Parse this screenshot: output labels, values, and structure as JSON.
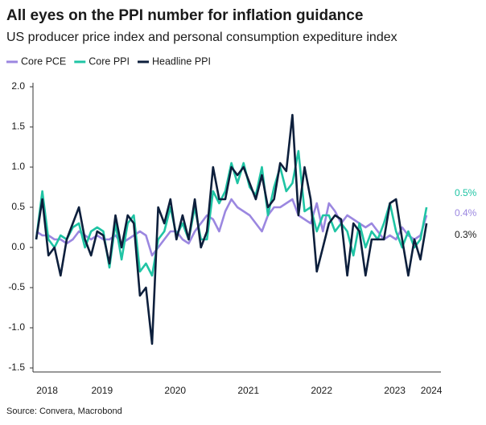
{
  "chart_data": {
    "type": "line",
    "title": "All eyes on the PPI number for inflation guidance",
    "subtitle": "US producer price index and personal consumption expediture index",
    "source": "Source: Convera, Macrobond",
    "categories": [
      null,
      "2018",
      null,
      null,
      null,
      null,
      null,
      null,
      null,
      null,
      "2019",
      null,
      null,
      null,
      null,
      null,
      null,
      null,
      null,
      null,
      null,
      null,
      "2020",
      null,
      null,
      null,
      null,
      null,
      null,
      null,
      null,
      null,
      null,
      null,
      "2021",
      null,
      null,
      null,
      null,
      null,
      null,
      null,
      null,
      null,
      null,
      null,
      "2022",
      null,
      null,
      null,
      null,
      null,
      null,
      null,
      null,
      null,
      null,
      null,
      "2023",
      null,
      null,
      null,
      null,
      null,
      "2024"
    ],
    "ylim": [
      -1.55,
      2.05
    ],
    "yticks": [
      {
        "value": -1.5,
        "label": "-1.5"
      },
      {
        "value": -1.0,
        "label": "-1.0"
      },
      -0.5,
      {
        "value": 0,
        "label": "0.0"
      },
      0.5,
      {
        "value": 1.0,
        "label": "1.0"
      },
      1.5,
      {
        "value": 2.0,
        "label": "2.0"
      }
    ],
    "series": [
      {
        "name": "Core PCE",
        "color": "#9b87e0",
        "values": [
          0.2,
          0.15,
          0.15,
          0.1,
          0.1,
          0.05,
          0.1,
          0.2,
          0.15,
          0.1,
          0.15,
          0.1,
          0.1,
          0.15,
          0.05,
          0.1,
          0.15,
          0.2,
          0.15,
          -0.1,
          0.0,
          0.1,
          0.2,
          0.2,
          0.1,
          0.05,
          0.2,
          0.3,
          0.4,
          0.35,
          0.2,
          0.45,
          0.6,
          0.5,
          0.45,
          0.4,
          0.3,
          0.2,
          0.4,
          0.5,
          0.5,
          0.55,
          0.6,
          0.4,
          0.35,
          0.3,
          0.55,
          0.2,
          0.55,
          0.45,
          0.3,
          0.4,
          0.35,
          0.3,
          0.25,
          0.3,
          0.2,
          0.1,
          0.15,
          0.1,
          0.25,
          0.15,
          0.1,
          0.15,
          0.4
        ],
        "value_labels": [
          null,
          null,
          null,
          null,
          null,
          null,
          null,
          null,
          null,
          null,
          null,
          null,
          null,
          null,
          null,
          null,
          null,
          null,
          null,
          null,
          null,
          null,
          null,
          null,
          null,
          null,
          null,
          null,
          null,
          null,
          null,
          null,
          null,
          null,
          null,
          null,
          null,
          null,
          null,
          null,
          null,
          null,
          null,
          null,
          null,
          null,
          null,
          null,
          null,
          null,
          null,
          null,
          null,
          null,
          null,
          null,
          null,
          null,
          null,
          null,
          null,
          null,
          null,
          null,
          "0.4%"
        ]
      },
      {
        "name": "Core PPI",
        "color": "#1fc4a4",
        "values": [
          0.1,
          0.7,
          0.1,
          0.0,
          0.15,
          0.1,
          0.25,
          0.3,
          0.0,
          0.2,
          0.25,
          0.2,
          -0.25,
          0.3,
          -0.15,
          0.3,
          0.4,
          -0.3,
          -0.2,
          -0.35,
          0.1,
          0.2,
          0.5,
          0.15,
          0.3,
          0.1,
          0.5,
          0.1,
          0.1,
          0.7,
          0.55,
          0.7,
          1.05,
          0.8,
          1.05,
          0.75,
          0.65,
          1.0,
          0.4,
          0.75,
          1.0,
          0.7,
          0.8,
          1.2,
          0.45,
          0.5,
          0.2,
          0.4,
          0.4,
          0.2,
          0.3,
          0.2,
          -0.1,
          0.3,
          0.0,
          0.2,
          0.1,
          0.3,
          0.55,
          0.2,
          0.0,
          0.2,
          0.0,
          0.1,
          0.5
        ],
        "value_labels": [
          null,
          null,
          null,
          null,
          null,
          null,
          null,
          null,
          null,
          null,
          null,
          null,
          null,
          null,
          null,
          null,
          null,
          null,
          null,
          null,
          null,
          null,
          null,
          null,
          null,
          null,
          null,
          null,
          null,
          null,
          null,
          null,
          null,
          null,
          null,
          null,
          null,
          null,
          null,
          null,
          null,
          null,
          null,
          null,
          null,
          null,
          null,
          null,
          null,
          null,
          null,
          null,
          null,
          null,
          null,
          null,
          null,
          null,
          null,
          null,
          null,
          null,
          null,
          null,
          "0.5%"
        ]
      },
      {
        "name": "Headline PPI",
        "color": "#0d1f3c",
        "values": [
          0.1,
          0.6,
          -0.1,
          0.0,
          -0.35,
          0.1,
          0.3,
          0.5,
          0.1,
          -0.1,
          0.2,
          0.15,
          -0.2,
          0.4,
          0.0,
          0.4,
          0.3,
          -0.6,
          -0.5,
          -1.2,
          0.5,
          0.3,
          0.6,
          0.1,
          0.4,
          0.1,
          0.6,
          0.0,
          0.2,
          1.0,
          0.6,
          0.6,
          1.0,
          0.9,
          1.0,
          0.8,
          0.6,
          0.9,
          0.5,
          0.6,
          1.05,
          0.95,
          1.65,
          0.4,
          1.0,
          0.6,
          -0.3,
          0.0,
          0.3,
          0.4,
          0.35,
          -0.35,
          0.3,
          0.2,
          -0.35,
          0.1,
          0.1,
          0.1,
          0.55,
          0.6,
          0.1,
          -0.35,
          0.1,
          -0.15,
          0.3
        ],
        "value_labels": [
          null,
          null,
          null,
          null,
          null,
          null,
          null,
          null,
          null,
          null,
          null,
          null,
          null,
          null,
          null,
          null,
          null,
          null,
          null,
          null,
          null,
          null,
          null,
          null,
          null,
          null,
          null,
          null,
          null,
          null,
          null,
          null,
          null,
          null,
          null,
          null,
          null,
          null,
          null,
          null,
          null,
          null,
          null,
          null,
          null,
          null,
          null,
          null,
          null,
          null,
          null,
          null,
          null,
          null,
          null,
          null,
          null,
          null,
          null,
          null,
          null,
          null,
          null,
          null,
          "0.3%"
        ]
      }
    ]
  }
}
